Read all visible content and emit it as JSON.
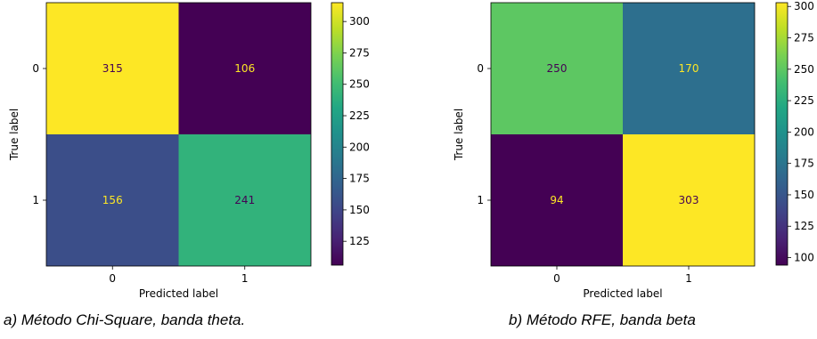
{
  "chart_data": [
    {
      "type": "heatmap",
      "xlabel": "Predicted label",
      "ylabel": "True label",
      "x_ticks": [
        "0",
        "1"
      ],
      "y_ticks": [
        "0",
        "1"
      ],
      "matrix": [
        [
          315,
          106
        ],
        [
          156,
          241
        ]
      ],
      "colormap": "viridis",
      "colorbar": {
        "min": 106,
        "max": 315,
        "ticks": [
          125,
          150,
          175,
          200,
          225,
          250,
          275,
          300
        ]
      },
      "caption": "a) Método Chi-Square, banda theta."
    },
    {
      "type": "heatmap",
      "xlabel": "Predicted label",
      "ylabel": "True label",
      "x_ticks": [
        "0",
        "1"
      ],
      "y_ticks": [
        "0",
        "1"
      ],
      "matrix": [
        [
          250,
          170
        ],
        [
          94,
          303
        ]
      ],
      "colormap": "viridis",
      "colorbar": {
        "min": 94,
        "max": 303,
        "ticks": [
          100,
          125,
          150,
          175,
          200,
          225,
          250,
          275,
          300
        ]
      },
      "caption": "b) Método RFE, banda beta"
    }
  ]
}
